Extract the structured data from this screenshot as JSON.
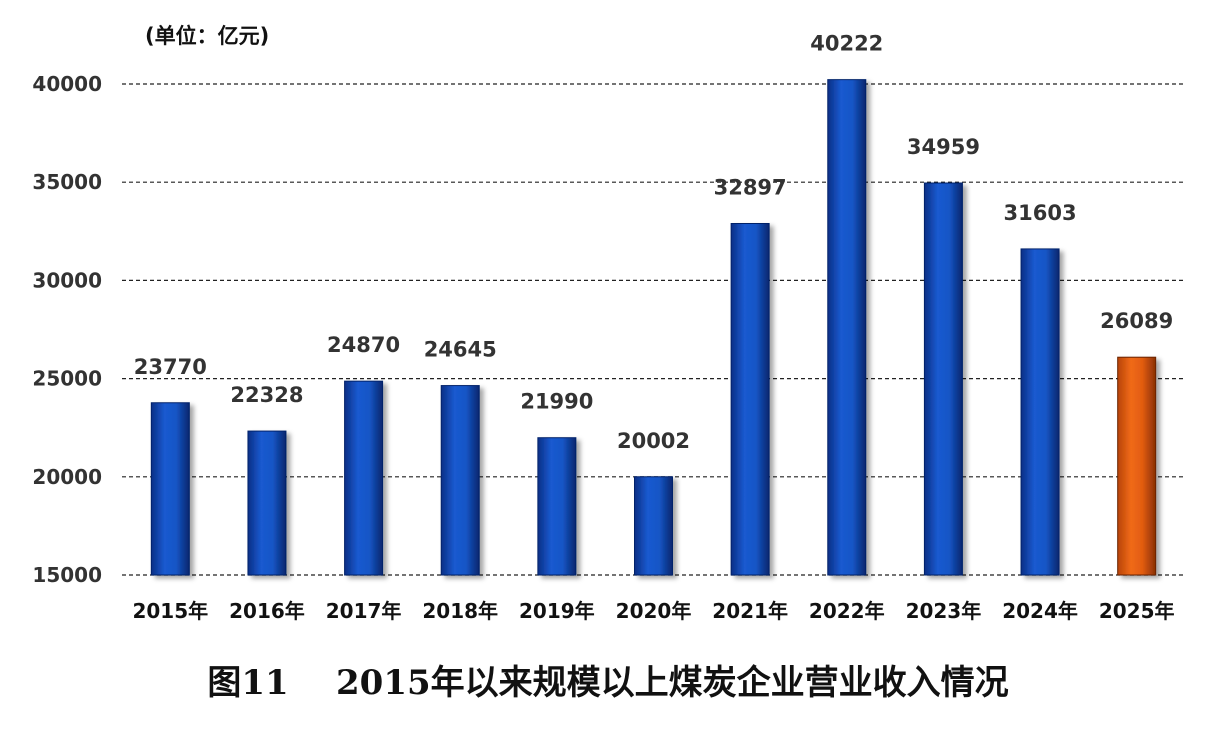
{
  "chart_data": {
    "type": "bar",
    "unit_label": "(单位：亿元)",
    "categories": [
      "2015年",
      "2016年",
      "2017年",
      "2018年",
      "2019年",
      "2020年",
      "2021年",
      "2022年",
      "2023年",
      "2024年",
      "2025年"
    ],
    "values": [
      23770,
      22328,
      24870,
      24645,
      21990,
      20002,
      32897,
      40222,
      34959,
      31603,
      26089
    ],
    "data_labels": [
      "23770",
      "22328",
      "24870",
      "24645",
      "21990",
      "20002",
      "32897",
      "40222",
      "34959",
      "31603",
      "26089"
    ],
    "ylim": [
      15000,
      40000
    ],
    "yticks": [
      "15000",
      "20000",
      "25000",
      "30000",
      "35000",
      "40000"
    ],
    "grid": true,
    "grid_style": "dashed",
    "colors": {
      "bar": "#1048b8",
      "bar_highlight": "#e05a10",
      "text": "#333333"
    },
    "highlight_index": 10
  },
  "caption": "图11    2015年以来规模以上煤炭企业营业收入情况"
}
